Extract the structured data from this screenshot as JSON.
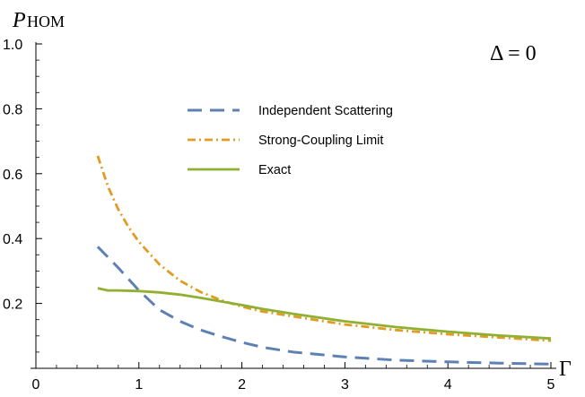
{
  "chart_data": {
    "type": "line",
    "title": "",
    "ylabel_main": "P",
    "ylabel_sub": "HOM",
    "xlabel": "Γ",
    "annotation": "Δ = 0",
    "xlim": [
      0,
      5.1
    ],
    "ylim": [
      0,
      1.0
    ],
    "x_ticks": [
      0,
      1,
      2,
      3,
      4,
      5
    ],
    "y_ticks": [
      0.2,
      0.4,
      0.6,
      0.8,
      1.0
    ],
    "x_tick_labels": [
      "0",
      "1",
      "2",
      "3",
      "4",
      "5"
    ],
    "y_tick_labels": [
      "0.2",
      "0.4",
      "0.6",
      "0.8",
      "1.0"
    ],
    "grid": false,
    "legend_position": "top-center",
    "series": [
      {
        "name": "Independent Scattering",
        "style": "dashed",
        "color": "#5e81b5",
        "x": [
          0.6,
          0.8,
          1.0,
          1.2,
          1.4,
          1.6,
          1.8,
          2.0,
          2.2,
          2.5,
          3.0,
          3.5,
          4.0,
          4.5,
          5.0
        ],
        "y": [
          0.375,
          0.31,
          0.24,
          0.18,
          0.145,
          0.118,
          0.098,
          0.08,
          0.065,
          0.05,
          0.035,
          0.025,
          0.02,
          0.016,
          0.013
        ]
      },
      {
        "name": "Strong-Coupling Limit",
        "style": "dash-dot",
        "color": "#e19c24",
        "x": [
          0.6,
          0.7,
          0.8,
          0.9,
          1.0,
          1.2,
          1.4,
          1.6,
          1.8,
          2.0,
          2.2,
          2.5,
          3.0,
          3.5,
          4.0,
          4.5,
          5.0
        ],
        "y": [
          0.655,
          0.56,
          0.49,
          0.435,
          0.39,
          0.32,
          0.27,
          0.235,
          0.21,
          0.19,
          0.175,
          0.16,
          0.135,
          0.118,
          0.105,
          0.095,
          0.085
        ]
      },
      {
        "name": "Exact",
        "style": "solid",
        "color": "#8fb032",
        "x": [
          0.6,
          0.7,
          0.8,
          1.0,
          1.2,
          1.4,
          1.6,
          1.8,
          2.0,
          2.2,
          2.5,
          3.0,
          3.5,
          4.0,
          4.5,
          5.0
        ],
        "y": [
          0.247,
          0.24,
          0.24,
          0.238,
          0.234,
          0.227,
          0.217,
          0.206,
          0.195,
          0.183,
          0.168,
          0.145,
          0.127,
          0.113,
          0.101,
          0.092
        ]
      }
    ]
  }
}
